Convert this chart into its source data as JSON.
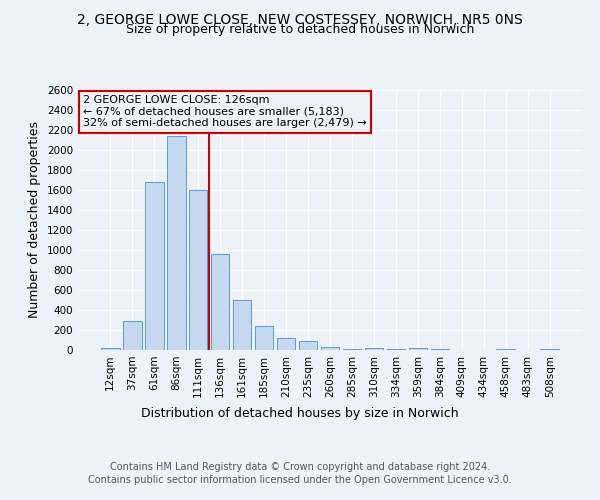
{
  "title1": "2, GEORGE LOWE CLOSE, NEW COSTESSEY, NORWICH, NR5 0NS",
  "title2": "Size of property relative to detached houses in Norwich",
  "xlabel": "Distribution of detached houses by size in Norwich",
  "ylabel": "Number of detached properties",
  "categories": [
    "12sqm",
    "37sqm",
    "61sqm",
    "86sqm",
    "111sqm",
    "136sqm",
    "161sqm",
    "185sqm",
    "210sqm",
    "235sqm",
    "260sqm",
    "285sqm",
    "310sqm",
    "334sqm",
    "359sqm",
    "384sqm",
    "409sqm",
    "434sqm",
    "458sqm",
    "483sqm",
    "508sqm"
  ],
  "values": [
    20,
    290,
    1680,
    2140,
    1600,
    965,
    500,
    245,
    120,
    95,
    35,
    10,
    20,
    8,
    18,
    8,
    5,
    3,
    8,
    0,
    10
  ],
  "bar_color": "#c5d8f0",
  "bar_edge_color": "#5b9bd5",
  "vline_color": "#cc0000",
  "annotation_title": "2 GEORGE LOWE CLOSE: 126sqm",
  "annotation_line1": "← 67% of detached houses are smaller (5,183)",
  "annotation_line2": "32% of semi-detached houses are larger (2,479) →",
  "annotation_box_color": "#cc0000",
  "ylim": [
    0,
    2600
  ],
  "yticks": [
    0,
    200,
    400,
    600,
    800,
    1000,
    1200,
    1400,
    1600,
    1800,
    2000,
    2200,
    2400,
    2600
  ],
  "footer1": "Contains HM Land Registry data © Crown copyright and database right 2024.",
  "footer2": "Contains public sector information licensed under the Open Government Licence v3.0.",
  "bg_color": "#edf2f9",
  "plot_bg_color": "#edf2f9",
  "title1_fontsize": 10,
  "title2_fontsize": 9,
  "axis_label_fontsize": 9,
  "tick_fontsize": 7.5,
  "annotation_fontsize": 8,
  "footer_fontsize": 7
}
